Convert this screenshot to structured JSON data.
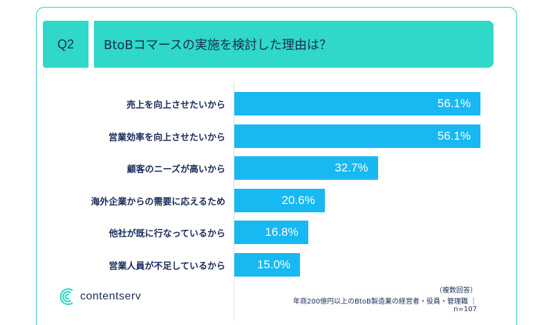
{
  "header": {
    "q_label": "Q2",
    "question": "BtoBコマースの実施を検討した理由は？"
  },
  "chart_data": {
    "type": "bar",
    "orientation": "horizontal",
    "categories": [
      "売上を向上させたいから",
      "営業効率を向上させたいから",
      "顧客のニーズが高いから",
      "海外企業からの需要に応えるため",
      "他社が既に行なっているから",
      "営業人員が不足しているから"
    ],
    "values": [
      56.1,
      56.1,
      32.7,
      20.6,
      16.8,
      15.0
    ],
    "value_labels": [
      "56.1%",
      "56.1%",
      "32.7%",
      "20.6%",
      "16.8%",
      "15.0%"
    ],
    "xlim": [
      0,
      60
    ],
    "bar_color": "#18b8f2"
  },
  "logo": {
    "text": "contentserv"
  },
  "notes": {
    "multiple_answer": "（複数回答）",
    "sample": "年商200億円以上のBtoB製造業の経営者・役員・管理職 ｜n=107"
  },
  "colors": {
    "accent": "#2fd8c8",
    "text": "#1a2a5a"
  }
}
